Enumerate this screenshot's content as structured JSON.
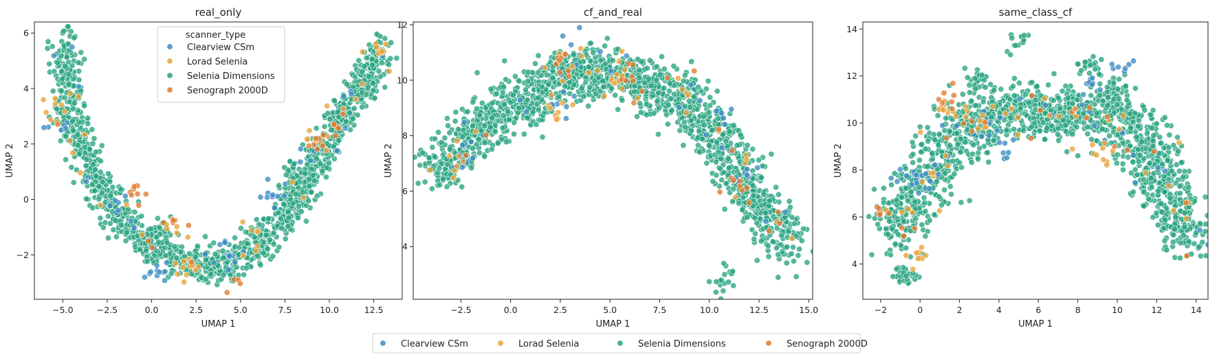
{
  "figure": {
    "legend_entries": [
      {
        "label": "Clearview CSm",
        "color": "#3b8bc2"
      },
      {
        "label": "Lorad Selenia",
        "color": "#e8a33a"
      },
      {
        "label": "Selenia Dimensions",
        "color": "#26a37f"
      },
      {
        "label": "Senograph 2000D",
        "color": "#e07b2c"
      }
    ]
  },
  "chart_data": [
    {
      "type": "scatter",
      "title": "real_only",
      "xlabel": "UMAP 1",
      "ylabel": "UMAP 2",
      "xlim": [
        -6.6,
        14.1
      ],
      "ylim": [
        -3.6,
        6.4
      ],
      "xticks": [
        -5.0,
        -2.5,
        0.0,
        2.5,
        5.0,
        7.5,
        10.0,
        12.5
      ],
      "xtick_labels": [
        "−5.0",
        "−2.5",
        "0.0",
        "2.5",
        "5.0",
        "7.5",
        "10.0",
        "12.5"
      ],
      "yticks": [
        -2,
        0,
        2,
        4,
        6
      ],
      "ytick_labels": [
        "−2",
        "0",
        "2",
        "4",
        "6"
      ],
      "legend_title": "scanner_type",
      "legend_position": "upper-center",
      "point_count_approx": 2500,
      "shape_points": {
        "centerline": [
          [
            -5.0,
            5.8
          ],
          [
            -4.8,
            4.6
          ],
          [
            -4.4,
            2.8
          ],
          [
            -3.5,
            1.2
          ],
          [
            -2.5,
            0.1
          ],
          [
            -1.2,
            -1.0
          ],
          [
            0.0,
            -1.7
          ],
          [
            1.5,
            -2.2
          ],
          [
            3.0,
            -2.4
          ],
          [
            4.5,
            -2.3
          ],
          [
            6.0,
            -1.6
          ],
          [
            7.5,
            -0.7
          ],
          [
            8.5,
            0.4
          ],
          [
            9.5,
            1.6
          ],
          [
            10.5,
            2.8
          ],
          [
            11.5,
            3.8
          ],
          [
            12.3,
            4.6
          ],
          [
            13.0,
            5.6
          ]
        ],
        "spread": 0.55
      },
      "series": [
        {
          "name": "Selenia Dimensions",
          "share": 0.9,
          "hotspots": [
            [
              -5.0,
              3.0
            ],
            [
              0.5,
              -1.2
            ],
            [
              3.5,
              -2.5
            ],
            [
              8.0,
              0.8
            ],
            [
              12.0,
              4.0
            ]
          ]
        },
        {
          "name": "Clearview CSm",
          "share": 0.04,
          "hotspots": [
            [
              -5.0,
              2.5
            ],
            [
              6.5,
              0.2
            ],
            [
              7.0,
              0.3
            ],
            [
              8.5,
              1.5
            ],
            [
              -2.0,
              -0.3
            ],
            [
              0.2,
              -2.6
            ],
            [
              4.0,
              -1.8
            ]
          ]
        },
        {
          "name": "Lorad Selenia",
          "share": 0.04,
          "hotspots": [
            [
              -5.3,
              3.2
            ],
            [
              1.2,
              -1.0
            ],
            [
              9.2,
              2.3
            ],
            [
              12.8,
              5.5
            ],
            [
              2.0,
              -2.5
            ],
            [
              6.0,
              -1.0
            ]
          ]
        },
        {
          "name": "Senograph 2000D",
          "share": 0.02,
          "hotspots": [
            [
              1.3,
              -0.8
            ],
            [
              -1.0,
              0.0
            ],
            [
              10.5,
              3.0
            ],
            [
              4.5,
              -2.9
            ],
            [
              9.2,
              2.0
            ]
          ]
        }
      ]
    },
    {
      "type": "scatter",
      "title": "cf_and_real",
      "xlabel": "UMAP 1",
      "ylabel": "UMAP 2",
      "xlim": [
        -4.9,
        15.2
      ],
      "ylim": [
        2.1,
        12.1
      ],
      "xticks": [
        -2.5,
        0.0,
        2.5,
        5.0,
        7.5,
        10.0,
        12.5,
        15.0
      ],
      "xtick_labels": [
        "−2.5",
        "0.0",
        "2.5",
        "5.0",
        "7.5",
        "10.0",
        "12.5",
        "15.0"
      ],
      "yticks": [
        4,
        6,
        8,
        10,
        12
      ],
      "ytick_labels": [
        "4",
        "6",
        "8",
        "10",
        "12"
      ],
      "point_count_approx": 2600,
      "shape_points": {
        "centerline": [
          [
            -3.8,
            6.7
          ],
          [
            -2.5,
            7.6
          ],
          [
            -1.0,
            8.6
          ],
          [
            0.5,
            9.3
          ],
          [
            2.0,
            10.0
          ],
          [
            3.5,
            10.4
          ],
          [
            5.0,
            10.2
          ],
          [
            6.5,
            10.0
          ],
          [
            8.0,
            9.6
          ],
          [
            9.5,
            8.8
          ],
          [
            10.5,
            7.8
          ],
          [
            11.5,
            6.8
          ],
          [
            12.5,
            5.6
          ],
          [
            13.5,
            4.6
          ],
          [
            14.0,
            4.0
          ]
        ],
        "spread": 0.85
      },
      "series": [
        {
          "name": "Selenia Dimensions",
          "share": 0.92,
          "hotspots": [
            [
              1.0,
              9.0
            ],
            [
              3.5,
              10.5
            ],
            [
              9.5,
              8.0
            ],
            [
              12.0,
              5.5
            ],
            [
              10.7,
              2.8
            ]
          ]
        },
        {
          "name": "Clearview CSm",
          "share": 0.03,
          "hotspots": [
            [
              2.5,
              9.2
            ],
            [
              3.0,
              11.5
            ],
            [
              -2.5,
              7.1
            ],
            [
              10.5,
              8.8
            ],
            [
              11.5,
              6.5
            ],
            [
              9.3,
              9.5
            ]
          ]
        },
        {
          "name": "Lorad Selenia",
          "share": 0.03,
          "hotspots": [
            [
              2.3,
              9.0
            ],
            [
              5.5,
              10.1
            ],
            [
              9.0,
              9.7
            ],
            [
              11.8,
              7.2
            ],
            [
              -2.8,
              6.9
            ]
          ]
        },
        {
          "name": "Senograph 2000D",
          "share": 0.02,
          "hotspots": [
            [
              8.8,
              10.6
            ],
            [
              6.0,
              10.0
            ],
            [
              11.5,
              6.2
            ],
            [
              2.8,
              10.6
            ]
          ]
        }
      ]
    },
    {
      "type": "scatter",
      "title": "same_class_cf",
      "xlabel": "UMAP 1",
      "ylabel": "UMAP 2",
      "xlim": [
        -2.9,
        14.6
      ],
      "ylim": [
        2.5,
        14.3
      ],
      "xticks": [
        -2,
        0,
        2,
        4,
        6,
        8,
        10,
        12,
        14
      ],
      "xtick_labels": [
        "−2",
        "0",
        "2",
        "4",
        "6",
        "8",
        "10",
        "12",
        "14"
      ],
      "yticks": [
        4,
        6,
        8,
        10,
        12,
        14
      ],
      "ytick_labels": [
        "4",
        "6",
        "8",
        "10",
        "12",
        "14"
      ],
      "point_count_approx": 2600,
      "shape_points": {
        "centerline": [
          [
            -1.5,
            5.2
          ],
          [
            -0.8,
            6.2
          ],
          [
            0.0,
            7.2
          ],
          [
            1.0,
            8.6
          ],
          [
            2.0,
            9.6
          ],
          [
            3.5,
            10.4
          ],
          [
            5.0,
            10.6
          ],
          [
            6.5,
            10.2
          ],
          [
            8.0,
            10.4
          ],
          [
            9.5,
            10.6
          ],
          [
            10.8,
            10.0
          ],
          [
            11.5,
            8.8
          ],
          [
            12.2,
            7.6
          ],
          [
            12.8,
            6.4
          ],
          [
            13.3,
            5.6
          ],
          [
            13.8,
            4.8
          ]
        ],
        "spread": 1.0
      },
      "series": [
        {
          "name": "Selenia Dimensions",
          "share": 0.9,
          "hotspots": [
            [
              5.0,
              13.5
            ],
            [
              8.5,
              12.4
            ],
            [
              -0.8,
              3.5
            ],
            [
              10.0,
              11.5
            ],
            [
              3.0,
              11.8
            ]
          ]
        },
        {
          "name": "Clearview CSm",
          "share": 0.04,
          "hotspots": [
            [
              -1.0,
              7.5
            ],
            [
              4.3,
              8.8
            ],
            [
              3.8,
              10.0
            ],
            [
              8.8,
              11.8
            ],
            [
              10.0,
              12.3
            ],
            [
              0.3,
              7.8
            ]
          ]
        },
        {
          "name": "Lorad Selenia",
          "share": 0.04,
          "hotspots": [
            [
              3.3,
              10.0
            ],
            [
              8.5,
              8.8
            ],
            [
              2.5,
              10.3
            ],
            [
              -0.2,
              4.2
            ],
            [
              9.5,
              8.5
            ],
            [
              1.5,
              10.5
            ]
          ]
        },
        {
          "name": "Senograph 2000D",
          "share": 0.02,
          "hotspots": [
            [
              1.3,
              11.1
            ],
            [
              2.5,
              9.8
            ],
            [
              -2.0,
              6.1
            ],
            [
              8.0,
              10.5
            ]
          ]
        }
      ]
    }
  ]
}
